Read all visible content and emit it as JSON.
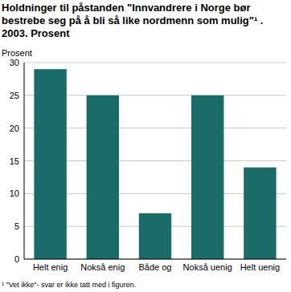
{
  "chart_data": {
    "type": "bar",
    "title": "Holdninger til påstanden \"Innvandrere i Norge bør bestrebe seg på å bli så like nordmenn som mulig\"¹ . 2003. Prosent",
    "y_label": "Prosent",
    "footnote": "¹ \"Vet ikke\"- svar er ikke tatt med i figuren.",
    "categories": [
      "Helt enig",
      "Nokså enig",
      "Både og",
      "Nokså uenig",
      "Helt uenig"
    ],
    "values": [
      29,
      25,
      7,
      25,
      14
    ],
    "color": "#1b6b68",
    "ylim": [
      0,
      30
    ],
    "yticks": [
      0,
      5,
      10,
      15,
      20,
      25,
      30
    ],
    "grid": true
  }
}
